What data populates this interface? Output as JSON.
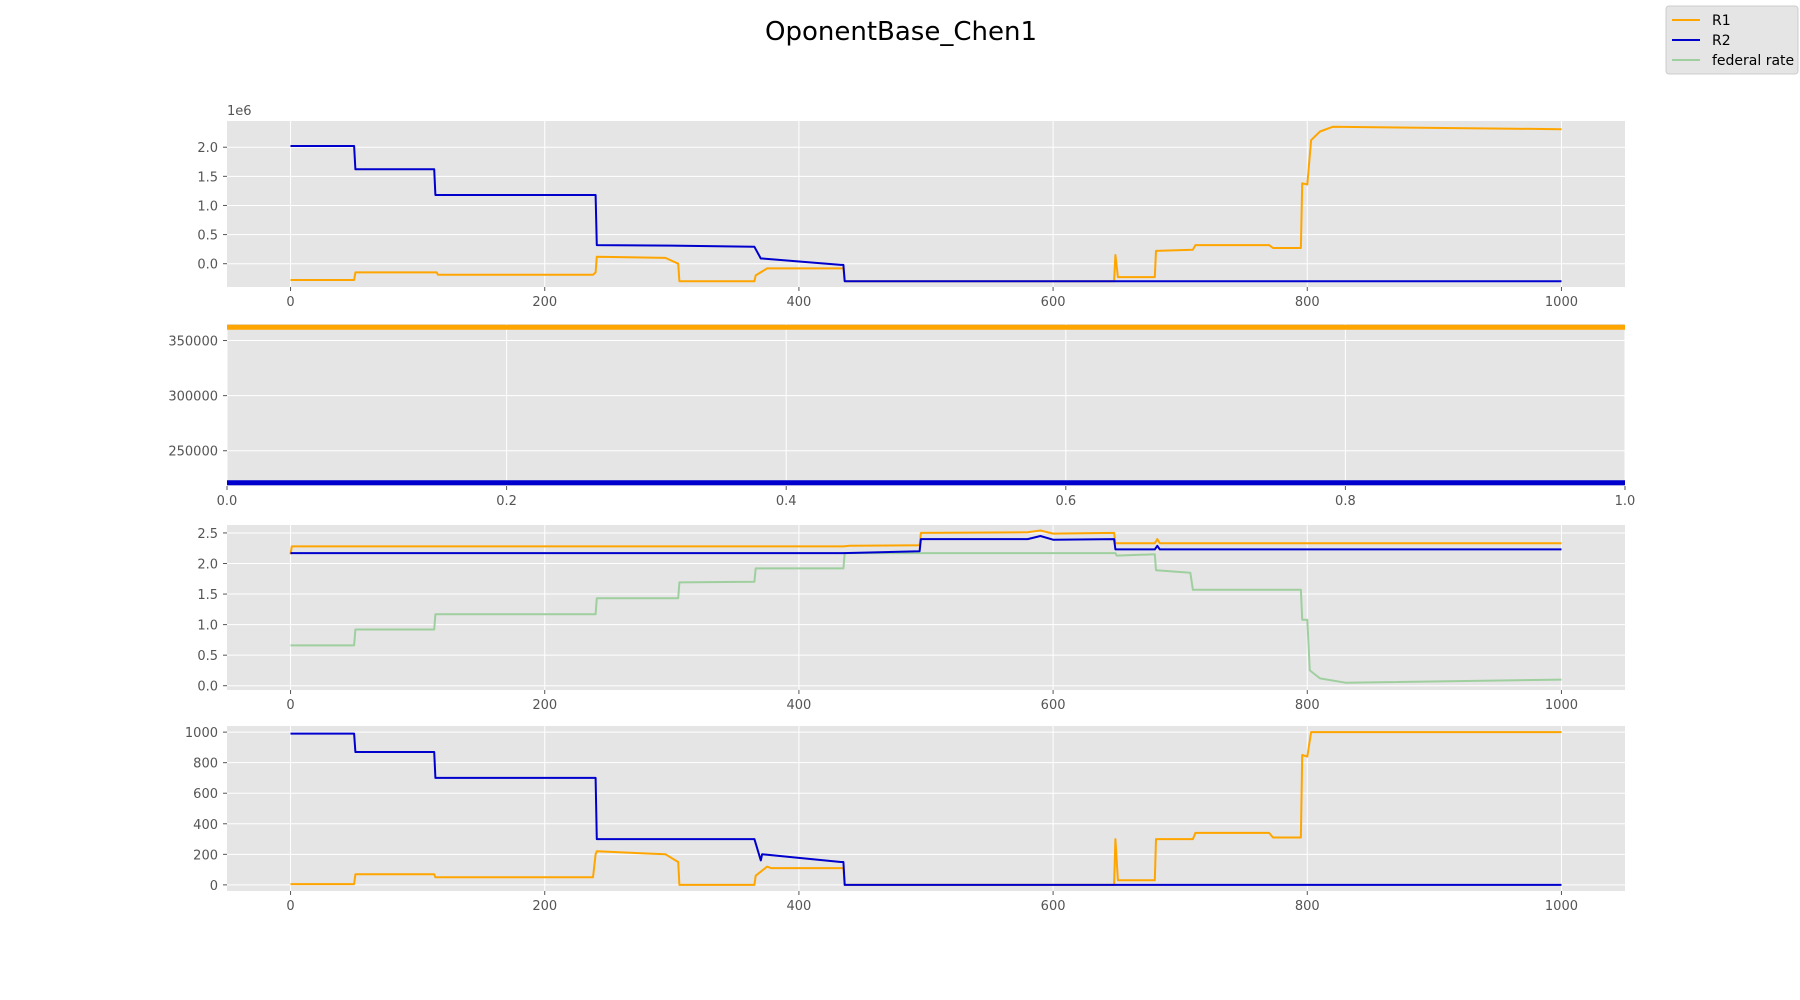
{
  "figure": {
    "title": "OponentBase_Chen1"
  },
  "legend": {
    "location": "top-right",
    "entries": [
      {
        "label": "R1",
        "color": "#ffa500"
      },
      {
        "label": "R2",
        "color": "#0000cd"
      },
      {
        "label": "federal rate",
        "color": "#9fcf9f"
      }
    ]
  },
  "chart_data": [
    {
      "type": "line",
      "xlim": [
        -50,
        1050
      ],
      "ylim": [
        -400000,
        2450000
      ],
      "y_offset_label": "1e6",
      "xticks": [
        0,
        200,
        400,
        600,
        800,
        1000
      ],
      "xtick_labels": [
        "0",
        "200",
        "400",
        "600",
        "800",
        "1000"
      ],
      "yticks": [
        0,
        500000,
        1000000,
        1500000,
        2000000
      ],
      "ytick_labels": [
        "0.0",
        "0.5",
        "1.0",
        "1.5",
        "2.0"
      ],
      "series": [
        {
          "name": "R1",
          "color": "#ffa500",
          "x": [
            0,
            50,
            51,
            115,
            116,
            238,
            240,
            241,
            295,
            305,
            306,
            365,
            366,
            375,
            378,
            435,
            436,
            648,
            649,
            651,
            680,
            681,
            710,
            712,
            770,
            773,
            795,
            796,
            800,
            803,
            810,
            820,
            1000
          ],
          "y": [
            -280000,
            -280000,
            -150000,
            -150000,
            -190000,
            -190000,
            -150000,
            120000,
            100000,
            0,
            -300000,
            -300000,
            -200000,
            -80000,
            -80000,
            -80000,
            -300000,
            -300000,
            150000,
            -230000,
            -230000,
            220000,
            240000,
            320000,
            320000,
            270000,
            270000,
            1380000,
            1360000,
            2120000,
            2270000,
            2350000,
            2310000
          ]
        },
        {
          "name": "R2",
          "color": "#0000cd",
          "x": [
            0,
            50,
            51,
            113,
            114,
            240,
            241,
            300,
            365,
            370,
            371,
            433,
            435,
            436,
            1000
          ],
          "y": [
            2020000,
            2020000,
            1620000,
            1620000,
            1180000,
            1180000,
            320000,
            310000,
            290000,
            90000,
            90000,
            -20000,
            -20000,
            -300000,
            -300000
          ]
        }
      ]
    },
    {
      "type": "line",
      "xlim": [
        0,
        1
      ],
      "ylim": [
        218000,
        365000
      ],
      "xticks": [
        0,
        0.2,
        0.4,
        0.6,
        0.8,
        1.0
      ],
      "xtick_labels": [
        "0.0",
        "0.2",
        "0.4",
        "0.6",
        "0.8",
        "1.0"
      ],
      "yticks": [
        250000,
        300000,
        350000
      ],
      "ytick_labels": [
        "250000",
        "300000",
        "350000"
      ],
      "series": [
        {
          "name": "R1",
          "color": "#ffa500",
          "x": [
            0,
            1
          ],
          "y": [
            362000,
            362000
          ]
        },
        {
          "name": "R2",
          "color": "#0000cd",
          "x": [
            0,
            1
          ],
          "y": [
            221000,
            221000
          ]
        }
      ]
    },
    {
      "type": "line",
      "xlim": [
        -50,
        1050
      ],
      "ylim": [
        -0.07,
        2.63
      ],
      "xticks": [
        0,
        200,
        400,
        600,
        800,
        1000
      ],
      "xtick_labels": [
        "0",
        "200",
        "400",
        "600",
        "800",
        "1000"
      ],
      "yticks": [
        0,
        0.5,
        1.0,
        1.5,
        2.0,
        2.5
      ],
      "ytick_labels": [
        "0.0",
        "0.5",
        "1.0",
        "1.5",
        "2.0",
        "2.5"
      ],
      "series": [
        {
          "name": "federal rate",
          "color": "#9fcf9f",
          "x": [
            0,
            50,
            51,
            113,
            114,
            240,
            241,
            305,
            306,
            365,
            366,
            435,
            436,
            649,
            650,
            680,
            681,
            708,
            710,
            795,
            796,
            800,
            802,
            810,
            830,
            1000
          ],
          "y": [
            0.66,
            0.66,
            0.92,
            0.92,
            1.17,
            1.17,
            1.43,
            1.43,
            1.69,
            1.7,
            1.92,
            1.92,
            2.17,
            2.17,
            2.13,
            2.15,
            1.89,
            1.85,
            1.57,
            1.57,
            1.08,
            1.08,
            0.25,
            0.12,
            0.05,
            0.1
          ]
        },
        {
          "name": "R1",
          "color": "#ffa500",
          "x": [
            0,
            1,
            435,
            440,
            495,
            496,
            580,
            590,
            600,
            648,
            649,
            680,
            682,
            684,
            1000
          ],
          "y": [
            2.15,
            2.28,
            2.28,
            2.29,
            2.3,
            2.5,
            2.51,
            2.54,
            2.49,
            2.5,
            2.33,
            2.33,
            2.4,
            2.33,
            2.33
          ]
        },
        {
          "name": "R2",
          "color": "#0000cd",
          "x": [
            0,
            1,
            435,
            495,
            496,
            580,
            590,
            600,
            648,
            649,
            680,
            682,
            684,
            1000
          ],
          "y": [
            2.17,
            2.17,
            2.17,
            2.2,
            2.4,
            2.4,
            2.45,
            2.39,
            2.4,
            2.23,
            2.23,
            2.29,
            2.23,
            2.23
          ]
        }
      ]
    },
    {
      "type": "line",
      "xlim": [
        -50,
        1050
      ],
      "ylim": [
        -40,
        1040
      ],
      "xticks": [
        0,
        200,
        400,
        600,
        800,
        1000
      ],
      "xtick_labels": [
        "0",
        "200",
        "400",
        "600",
        "800",
        "1000"
      ],
      "yticks": [
        0,
        200,
        400,
        600,
        800,
        1000
      ],
      "ytick_labels": [
        "0",
        "200",
        "400",
        "600",
        "800",
        "1000"
      ],
      "series": [
        {
          "name": "R1",
          "color": "#ffa500",
          "x": [
            0,
            50,
            51,
            113,
            114,
            238,
            240,
            241,
            295,
            305,
            306,
            365,
            366,
            375,
            378,
            435,
            436,
            648,
            649,
            651,
            680,
            681,
            710,
            712,
            770,
            773,
            795,
            796,
            800,
            803,
            1000
          ],
          "y": [
            5,
            5,
            70,
            70,
            50,
            50,
            200,
            220,
            200,
            150,
            0,
            0,
            60,
            120,
            110,
            110,
            0,
            0,
            300,
            30,
            30,
            300,
            300,
            340,
            340,
            310,
            310,
            850,
            840,
            1000,
            1000
          ]
        },
        {
          "name": "R2",
          "color": "#0000cd",
          "x": [
            0,
            50,
            51,
            113,
            114,
            240,
            241,
            365,
            370,
            371,
            433,
            435,
            436,
            1000
          ],
          "y": [
            990,
            990,
            870,
            870,
            700,
            700,
            300,
            300,
            160,
            200,
            150,
            150,
            0,
            0
          ]
        }
      ]
    }
  ]
}
